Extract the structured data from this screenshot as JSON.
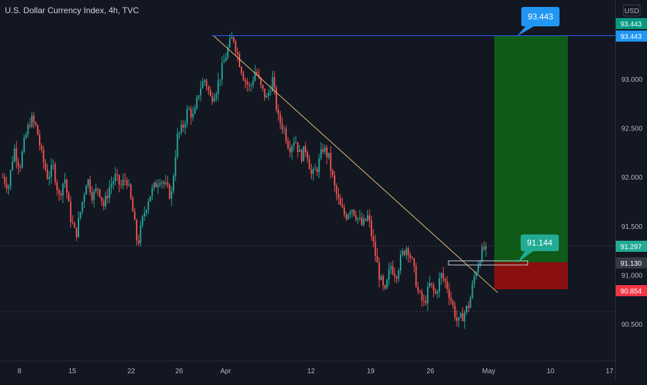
{
  "title": "U.S. Dollar Currency Index, 4h, TVC",
  "currency_label": "USD",
  "colors": {
    "background": "#131722",
    "up": "#26a69a",
    "down": "#ef5350",
    "profit_zone": "#0f5a17",
    "loss_zone": "#8a1010",
    "trendline": "#e8c177",
    "target_line": "#2962ff",
    "tag_blue": "#2196f3",
    "tag_green": "#089981",
    "tag_red": "#f23645",
    "tag_teal": "#22ab94",
    "tag_gray": "#363a45"
  },
  "chart_data": {
    "type": "candlestick",
    "x_tick_labels": [
      "8",
      "15",
      "22",
      "26",
      "Apr",
      "12",
      "19",
      "26",
      "May",
      "10",
      "17"
    ],
    "y_tick_labels": [
      "93.000",
      "92.500",
      "92.000",
      "91.500",
      "91.000",
      "90.500"
    ],
    "y_ticks": [
      93.0,
      92.5,
      92.0,
      91.5,
      91.0,
      90.5
    ],
    "ylim": [
      90.2,
      93.9
    ],
    "trendline": {
      "from": {
        "label": "Mar 31",
        "price": 93.44
      },
      "to": {
        "label": "Apr 30",
        "price": 90.82
      }
    },
    "position": {
      "target": 93.443,
      "entry": 91.13,
      "stop": 90.854,
      "current_price": 91.297
    },
    "price_tags": [
      {
        "name": "target-tag",
        "text": "93.443",
        "price": 93.443,
        "kind": "blue"
      },
      {
        "name": "target-tag-green",
        "text": "93.443",
        "price": 93.443,
        "kind": "green"
      },
      {
        "name": "current-price-tag",
        "text": "91.297",
        "price": 91.297,
        "kind": "teal"
      },
      {
        "name": "entry-price-tag",
        "text": "91.130",
        "price": 91.13,
        "kind": "gray"
      },
      {
        "name": "stop-price-tag",
        "text": "90.854",
        "price": 90.854,
        "kind": "red"
      }
    ],
    "callouts": [
      {
        "name": "target-callout",
        "text": "93.443",
        "kind": "blue"
      },
      {
        "name": "entry-callout",
        "text": "91.144",
        "kind": "teal"
      }
    ],
    "series_path": [
      [
        92.0,
        91.9,
        92.3,
        92.1,
        92.4,
        92.6,
        92.5,
        92.2,
        92.0,
        92.1,
        91.8,
        92.0,
        91.6,
        91.4,
        91.7,
        92.0,
        91.8,
        91.9,
        91.7,
        91.9,
        92.0,
        91.9,
        92.0,
        91.7,
        91.3,
        91.6,
        91.8,
        91.9,
        92.0,
        91.9,
        91.8,
        92.4,
        92.5,
        92.7,
        92.6,
        92.9,
        93.0,
        92.8,
        92.9,
        93.1,
        93.3,
        93.44,
        93.2,
        93.0,
        92.9,
        93.1,
        92.9,
        92.8,
        93.0,
        92.6,
        92.5,
        92.3,
        92.4,
        92.2,
        92.3,
        92.0,
        92.1,
        92.3,
        92.2,
        91.9,
        91.7,
        91.6,
        91.7,
        91.6,
        91.5,
        91.6,
        91.3,
        91.0,
        90.8,
        91.1,
        91.0,
        91.2,
        91.3,
        91.1,
        90.8,
        90.7,
        90.9,
        90.8,
        91.0,
        90.9,
        90.7,
        90.5,
        90.6,
        90.7,
        91.0,
        91.2,
        91.3
      ]
    ]
  }
}
